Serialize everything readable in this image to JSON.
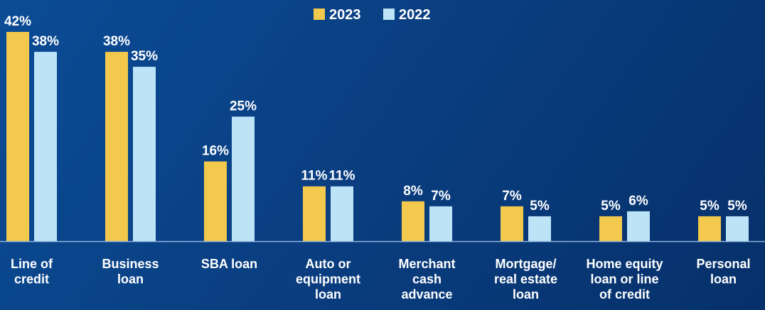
{
  "chart_data": {
    "type": "bar",
    "categories": [
      [
        "Line of",
        "credit"
      ],
      [
        "Business",
        "loan"
      ],
      [
        "SBA loan"
      ],
      [
        "Auto or",
        "equipment",
        "loan"
      ],
      [
        "Merchant",
        "cash",
        "advance"
      ],
      [
        "Mortgage/",
        "real estate",
        "loan"
      ],
      [
        "Home equity",
        "loan or line",
        "of credit"
      ],
      [
        "Personal",
        "loan"
      ]
    ],
    "series": [
      {
        "name": "2023",
        "color": "#f2c94c",
        "values": [
          42,
          38,
          16,
          11,
          8,
          7,
          5,
          5
        ],
        "labels": [
          "42%",
          "38%",
          "16%",
          "11%",
          "8%",
          "7%",
          "5%",
          "5%"
        ]
      },
      {
        "name": "2022",
        "color": "#bde3f7",
        "values": [
          38,
          35,
          25,
          11,
          7,
          5,
          6,
          5
        ],
        "labels": [
          "38%",
          "35%",
          "25%",
          "11%",
          "7%",
          "5%",
          "6%",
          "5%"
        ]
      }
    ],
    "ylim": [
      0,
      42
    ],
    "legend": "top-center",
    "grid": false,
    "baseline_color": "#8fb4dc"
  }
}
